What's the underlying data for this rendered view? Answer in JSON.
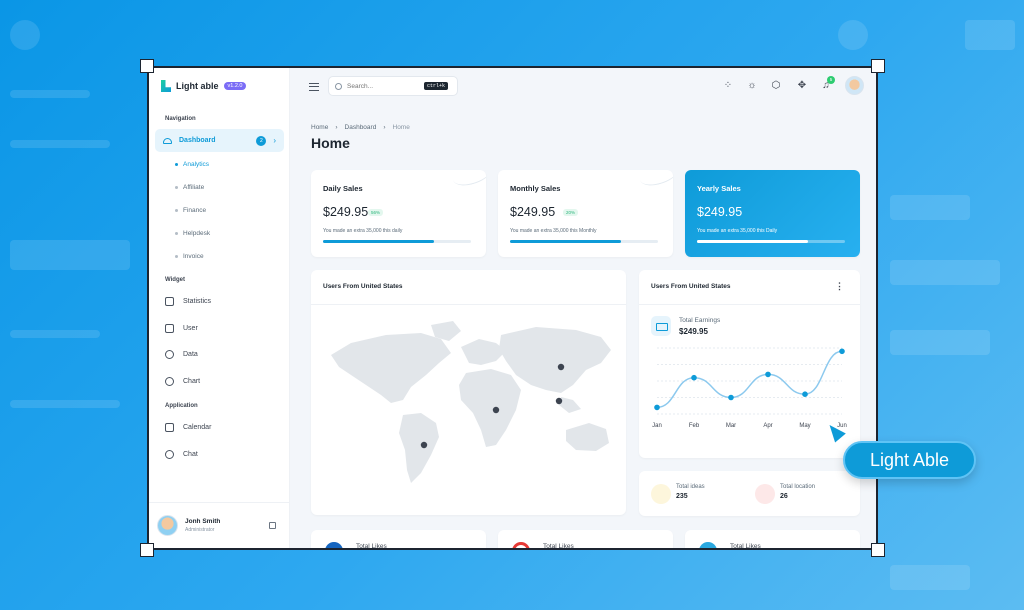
{
  "app": {
    "name": "Light able",
    "version": "v1.2.0"
  },
  "sidebar": {
    "section_navigation": "Navigation",
    "dashboard": {
      "label": "Dashboard",
      "count": "2"
    },
    "sub_items": [
      "Analytics",
      "Affiliate",
      "Finance",
      "Helpdesk",
      "Invoice"
    ],
    "section_widget": "Widget",
    "widget_items": [
      "Statistics",
      "User",
      "Data",
      "Chart"
    ],
    "section_application": "Application",
    "app_items": [
      "Calendar",
      "Chat"
    ],
    "user": {
      "name": "Jonh Smith",
      "role": "Administrator"
    }
  },
  "header": {
    "search_placeholder": "Search...",
    "shortcut": "ctrl+k",
    "notification_count": "5"
  },
  "breadcrumb": [
    "Home",
    "Dashboard",
    "Home"
  ],
  "page_title": "Home",
  "stats": [
    {
      "title": "Daily Sales",
      "value": "$249.95",
      "badge": "56%",
      "note": "You made an extra 35,000 this daily",
      "progress": 0.75
    },
    {
      "title": "Monthly Sales",
      "value": "$249.95",
      "badge": "20%",
      "note": "You made an extra 35,000 this Monthly",
      "progress": 0.75
    },
    {
      "title": "Yearly Sales",
      "value": "$249.95",
      "badge": "",
      "note": "You made an extra 35,000 this Daily",
      "progress": 0.75
    }
  ],
  "map_card": {
    "title": "Users From United States"
  },
  "earnings_card": {
    "title": "Users From United States",
    "earn_label": "Total Earnings",
    "earn_value": "$249.95",
    "months": [
      "Jan",
      "Feb",
      "Mar",
      "Apr",
      "May",
      "Jun"
    ]
  },
  "chart_data": {
    "type": "line",
    "title": "",
    "categories": [
      "Jan",
      "Feb",
      "Mar",
      "Apr",
      "May",
      "Jun"
    ],
    "values": [
      10,
      55,
      25,
      60,
      30,
      95
    ],
    "ylim": [
      0,
      100
    ],
    "grid": true,
    "color": "#0e9bd8"
  },
  "mini_stats": [
    {
      "label": "Total ideas",
      "value": "235"
    },
    {
      "label": "Total location",
      "value": "26"
    }
  ],
  "bottom_cards": [
    "Total Likes",
    "Total Likes",
    "Total Likes"
  ],
  "callout": "Light Able",
  "colors": {
    "accent": "#0e9bd8",
    "success": "#2eb67d",
    "background": "#2ea8f0"
  }
}
